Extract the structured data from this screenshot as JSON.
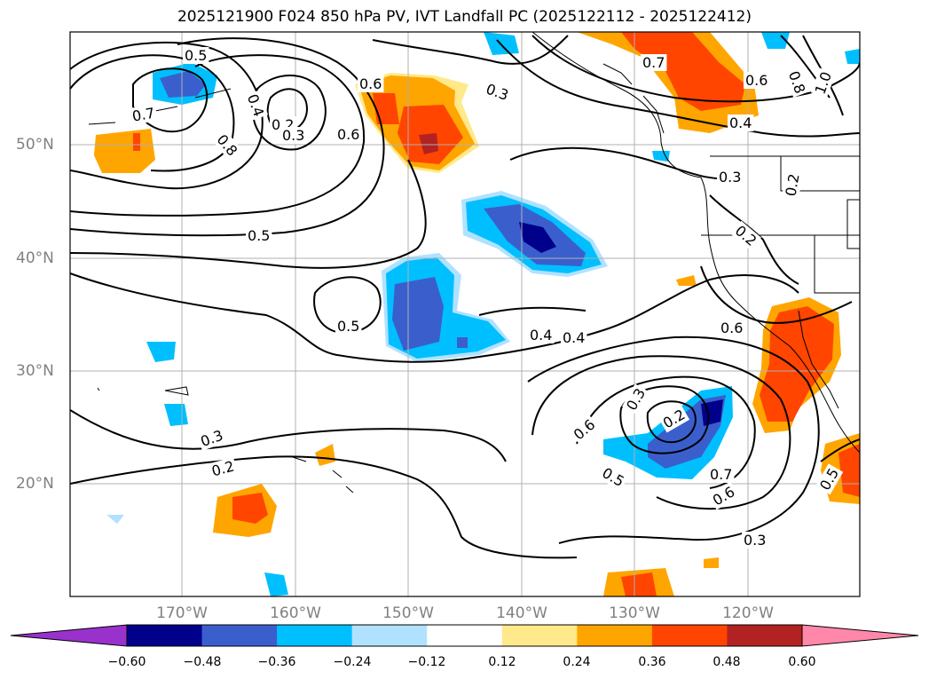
{
  "title": "2025121900 F024 850 hPa PV, IVT Landfall PC (2025122112 - 2025122412)",
  "lon_ticks": [
    "170°W",
    "160°W",
    "150°W",
    "140°W",
    "130°W",
    "120°W"
  ],
  "lat_ticks": [
    "50°N",
    "40°N",
    "30°N",
    "20°N"
  ],
  "colorbar": {
    "ticks": [
      "−0.60",
      "−0.48",
      "−0.36",
      "−0.24",
      "−0.12",
      "0.12",
      "0.24",
      "0.36",
      "0.48",
      "0.60"
    ],
    "colors": [
      "#9932cc",
      "#00008b",
      "#3a5fcd",
      "#00bfff",
      "#b0e2ff",
      "#ffffff",
      "#ffe98a",
      "#ffa500",
      "#ff4500",
      "#b22222",
      "#ff88aa"
    ]
  },
  "contour_labels": [
    "0.5",
    "0.4",
    "0.2",
    "0.3",
    "0.8",
    "0.6",
    "0.6",
    "0.3",
    "0.7",
    "0.6",
    "0.8",
    "1.0",
    "0.4",
    "0.3",
    "0.2",
    "0.2",
    "0.5",
    "0.5",
    "0.4",
    "0.4",
    "0.6",
    "0.3",
    "0.2",
    "0.6",
    "0.5",
    "0.7",
    "0.6",
    "0.3",
    "0.2",
    "0.3",
    "0.5",
    "0.7"
  ]
}
